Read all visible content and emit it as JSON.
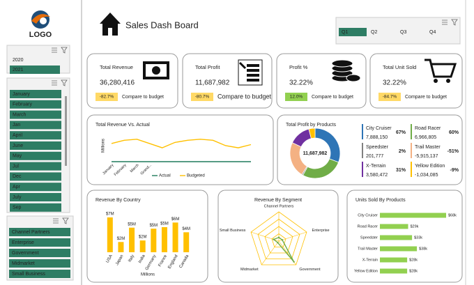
{
  "logo": "LOGO",
  "header": {
    "title": "Sales Dash Board",
    "quarters": [
      "Q1",
      "Q2",
      "Q3",
      "Q4"
    ],
    "selected_quarter": "Q1"
  },
  "sidebar": {
    "years": [
      "2020",
      "2021"
    ],
    "selected_year": "2021",
    "months": [
      "January",
      "February",
      "March",
      "Jan",
      "April",
      "June",
      "May",
      "Jul",
      "Dec",
      "Apr",
      "July",
      "Sep"
    ],
    "segments": [
      "Channel Partners",
      "Enterprise",
      "Government",
      "Midmarket",
      "Small Business"
    ]
  },
  "kpis": [
    {
      "title": "Total Revenue",
      "value": "36,280,416",
      "change": "-82.7%",
      "note": "Compare to budget",
      "color": "#ffd966"
    },
    {
      "title": "Total Profit",
      "value": "11,687,982",
      "change": "-80.7%",
      "note": "Compare to budget",
      "color": "#ffd966"
    },
    {
      "title": "Profit %",
      "value": "32.22%",
      "change": "12.0%",
      "note": "Compare to budget",
      "color": "#92d050"
    },
    {
      "title": "Total Unit Sold",
      "value": "32.22%",
      "change": "-84.7%",
      "note": "Compare to budget",
      "color": "#ffd966"
    }
  ],
  "chart_data": [
    {
      "type": "line",
      "title": "Total Revenue Vs. Actual",
      "y_label": "Millions",
      "categories": [
        "January",
        "February",
        "March",
        "Grand...",
        null,
        null,
        null,
        null,
        null,
        null,
        null,
        null
      ],
      "series": [
        {
          "name": "Actual",
          "color": "#1e7b5b",
          "values": [
            0,
            0,
            0,
            0,
            0,
            0,
            0,
            0,
            0,
            0,
            0,
            0
          ]
        },
        {
          "name": "Budgeted",
          "color": "#ffc000",
          "values": [
            17,
            20,
            21,
            17,
            13,
            18,
            20,
            21,
            20,
            15,
            13,
            16
          ]
        }
      ],
      "ylim": [
        0,
        30
      ]
    },
    {
      "type": "donut",
      "title": "Total Profit by Products",
      "center_label": "11,687,982",
      "categories": [
        "City Cruiser",
        "Road Racer",
        "Speedster",
        "Trail Master",
        "X-Terrain",
        "Yellow Edition"
      ],
      "values": [
        7888150,
        6966805,
        201777,
        -5915137,
        3580472,
        -1034085
      ],
      "value_labels": [
        "7,888,150",
        "6,966,805",
        "201,777",
        "-5,915,137",
        "3,580,472",
        "-1,034,085"
      ],
      "shares": [
        67,
        60,
        2,
        -51,
        31,
        -9
      ],
      "share_labels": [
        "67%",
        "60%",
        "2%",
        "-51%",
        "31%",
        "-9%"
      ],
      "colors": [
        "#2e75b6",
        "#70ad47",
        "#808080",
        "#f4b183",
        "#7030a0",
        "#ffc000"
      ],
      "share_colors": [
        "#2e75b6",
        "#70ad47",
        "#404040",
        "#ff5a1f",
        "#7030a0",
        "#ffc000"
      ]
    },
    {
      "type": "bar",
      "title": "Revenue By Country",
      "x_label": "Millions",
      "categories": [
        "USA",
        "Japan",
        "Italy",
        "India",
        "Germany",
        "France",
        "England",
        "Canada"
      ],
      "values": [
        6.8,
        2.0,
        4.8,
        2.3,
        4.6,
        4.9,
        5.8,
        3.9
      ],
      "value_labels": [
        "$7M",
        "$2M",
        "$5M",
        "$2M",
        "$5M",
        "$5M",
        "$6M",
        "$4M"
      ],
      "color": "#ffc000"
    },
    {
      "type": "radar",
      "title": "Revenue By Segment",
      "categories": [
        "Channel Partners",
        "Enterprise",
        "Government",
        "Midmarket",
        "Small Business"
      ],
      "values": [
        1,
        1,
        7,
        0.5,
        1.5
      ],
      "rlim": [
        0,
        8
      ],
      "color": "#70ad47",
      "grid_color": "#ffc000"
    },
    {
      "type": "hbar",
      "title": "Units Sold By Products",
      "categories": [
        "City Cruiser",
        "Road Racer",
        "Speedster",
        "Trail Master",
        "X-Terrain",
        "Yellow Edition"
      ],
      "values": [
        68,
        29,
        33,
        38,
        28,
        28
      ],
      "value_labels": [
        "$68k",
        "$29k",
        "$33k",
        "$38k",
        "$28k",
        "$28k"
      ],
      "color": "#92d050"
    }
  ]
}
